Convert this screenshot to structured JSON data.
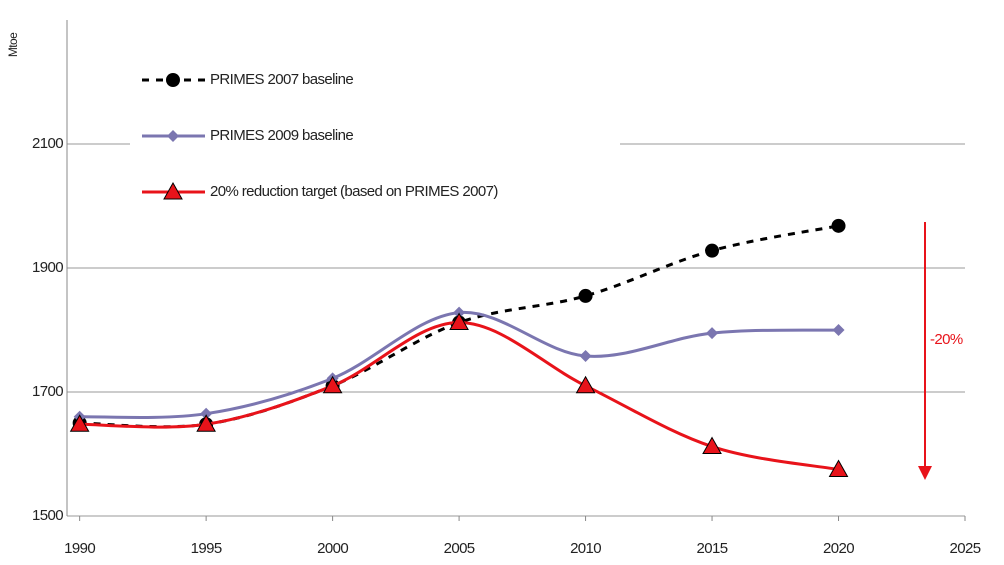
{
  "chart_data": {
    "type": "line",
    "y_label": "Mtoe",
    "x": [
      1990,
      1995,
      2000,
      2005,
      2010,
      2015,
      2020
    ],
    "series": [
      {
        "name": "PRIMES 2007 baseline",
        "color": "#000000",
        "dash": true,
        "marker": "circle",
        "values": [
          1650,
          1648,
          1710,
          1812,
          1855,
          1928,
          1968
        ]
      },
      {
        "name": "PRIMES 2009 baseline",
        "color": "#7b76b0",
        "dash": false,
        "marker": "diamond",
        "values": [
          1660,
          1665,
          1722,
          1828,
          1758,
          1795,
          1800
        ]
      },
      {
        "name": "20% reduction target (based on PRIMES 2007)",
        "color": "#e8131a",
        "dash": false,
        "marker": "triangle",
        "values": [
          1648,
          1648,
          1710,
          1812,
          1710,
          1612,
          1575
        ]
      }
    ],
    "annotation": "-20%",
    "xlim": [
      1989.5,
      2025
    ],
    "xticks": [
      1990,
      1995,
      2000,
      2005,
      2010,
      2015,
      2020,
      2025
    ],
    "ylim": [
      1500,
      2300
    ],
    "yticks": [
      1500,
      1700,
      1900,
      2100
    ],
    "grid": true
  }
}
